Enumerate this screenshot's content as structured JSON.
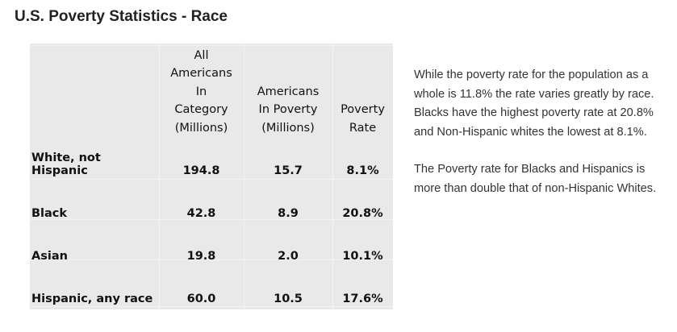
{
  "title": "U.S. Poverty Statistics - Race",
  "table": {
    "headers": {
      "all_americans": [
        "All",
        "Americans",
        "In",
        "Category",
        "(Millions)"
      ],
      "in_poverty": [
        "Americans",
        "In Poverty",
        "(Millions)"
      ],
      "rate": [
        "Poverty",
        "Rate"
      ]
    },
    "rows": [
      {
        "race": "White, not Hispanic",
        "all": "194.8",
        "poverty": "15.7",
        "rate": "8.1%"
      },
      {
        "race": "Black",
        "all": "42.8",
        "poverty": "8.9",
        "rate": "20.8%"
      },
      {
        "race": "Asian",
        "all": "19.8",
        "poverty": "2.0",
        "rate": "10.1%"
      },
      {
        "race": "Hispanic, any race",
        "all": "60.0",
        "poverty": "10.5",
        "rate": "17.6%"
      }
    ]
  },
  "description": {
    "paragraph1": "While the poverty rate for the population as a whole is 11.8% the rate varies greatly by race.  Blacks have the highest poverty rate at 20.8% and Non-Hispanic whites the lowest at 8.1%.",
    "paragraph2": "The Poverty rate for Blacks and Hispanics is more than double that of non-Hispanic Whites."
  }
}
